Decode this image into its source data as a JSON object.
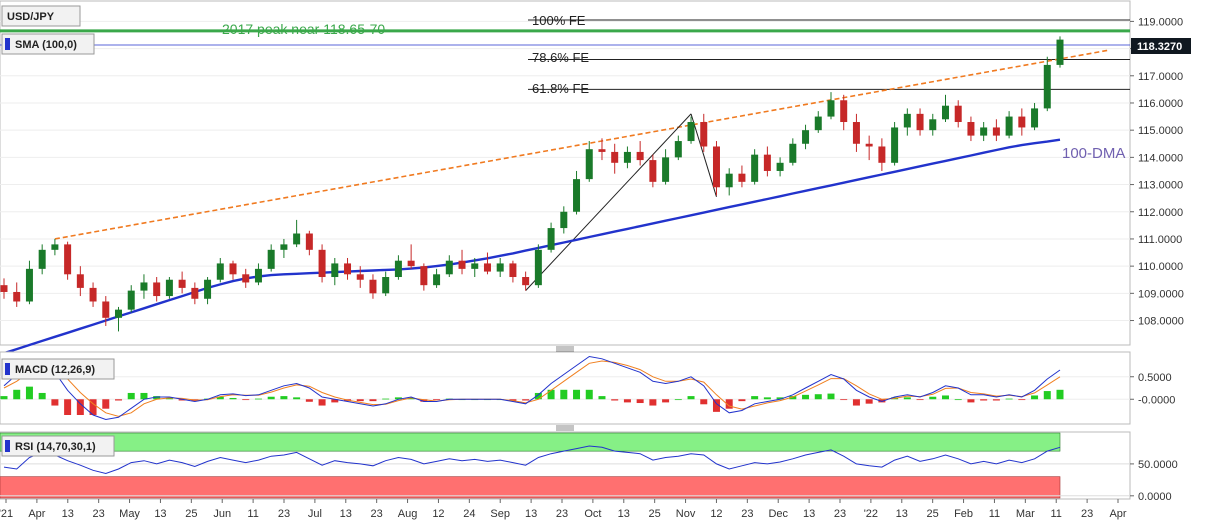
{
  "chart_data": {
    "type": "line",
    "price_panel": {
      "symbol": "USD/JPY",
      "indicator": "SMA (100,0)",
      "last_price": "118.3270",
      "y_ticks": [
        "119.0000",
        "118.0000",
        "117.0000",
        "116.0000",
        "115.0000",
        "114.0000",
        "113.0000",
        "112.0000",
        "111.0000",
        "110.0000",
        "109.0000",
        "108.0000"
      ],
      "ylim": [
        107.1,
        119.75
      ],
      "candles": [
        {
          "o": 109.3,
          "h": 109.55,
          "l": 108.8,
          "c": 109.05
        },
        {
          "o": 109.05,
          "h": 109.4,
          "l": 108.5,
          "c": 108.7
        },
        {
          "o": 108.7,
          "h": 110.2,
          "l": 108.6,
          "c": 109.9
        },
        {
          "o": 109.9,
          "h": 110.8,
          "l": 109.7,
          "c": 110.6
        },
        {
          "o": 110.6,
          "h": 111.0,
          "l": 110.4,
          "c": 110.8
        },
        {
          "o": 110.8,
          "h": 110.9,
          "l": 109.5,
          "c": 109.7
        },
        {
          "o": 109.7,
          "h": 110.0,
          "l": 108.9,
          "c": 109.2
        },
        {
          "o": 109.2,
          "h": 109.4,
          "l": 108.5,
          "c": 108.7
        },
        {
          "o": 108.7,
          "h": 108.9,
          "l": 107.8,
          "c": 108.1
        },
        {
          "o": 108.1,
          "h": 108.5,
          "l": 107.6,
          "c": 108.4
        },
        {
          "o": 108.4,
          "h": 109.3,
          "l": 108.3,
          "c": 109.1
        },
        {
          "o": 109.1,
          "h": 109.7,
          "l": 108.8,
          "c": 109.4
        },
        {
          "o": 109.4,
          "h": 109.6,
          "l": 108.7,
          "c": 108.9
        },
        {
          "o": 108.9,
          "h": 109.6,
          "l": 108.8,
          "c": 109.5
        },
        {
          "o": 109.5,
          "h": 109.8,
          "l": 109.0,
          "c": 109.2
        },
        {
          "o": 109.2,
          "h": 109.4,
          "l": 108.6,
          "c": 108.8
        },
        {
          "o": 108.8,
          "h": 109.6,
          "l": 108.6,
          "c": 109.5
        },
        {
          "o": 109.5,
          "h": 110.3,
          "l": 109.4,
          "c": 110.1
        },
        {
          "o": 110.1,
          "h": 110.2,
          "l": 109.5,
          "c": 109.7
        },
        {
          "o": 109.7,
          "h": 109.9,
          "l": 109.2,
          "c": 109.4
        },
        {
          "o": 109.4,
          "h": 110.1,
          "l": 109.3,
          "c": 109.9
        },
        {
          "o": 109.9,
          "h": 110.8,
          "l": 109.8,
          "c": 110.6
        },
        {
          "o": 110.6,
          "h": 111.0,
          "l": 110.3,
          "c": 110.8
        },
        {
          "o": 110.8,
          "h": 111.7,
          "l": 110.7,
          "c": 111.2
        },
        {
          "o": 111.2,
          "h": 111.3,
          "l": 110.4,
          "c": 110.6
        },
        {
          "o": 110.6,
          "h": 110.8,
          "l": 109.4,
          "c": 109.6
        },
        {
          "o": 109.6,
          "h": 110.3,
          "l": 109.3,
          "c": 110.1
        },
        {
          "o": 110.1,
          "h": 110.3,
          "l": 109.5,
          "c": 109.7
        },
        {
          "o": 109.7,
          "h": 110.0,
          "l": 109.2,
          "c": 109.5
        },
        {
          "o": 109.5,
          "h": 109.7,
          "l": 108.8,
          "c": 109.0
        },
        {
          "o": 109.0,
          "h": 109.8,
          "l": 108.9,
          "c": 109.6
        },
        {
          "o": 109.6,
          "h": 110.4,
          "l": 109.5,
          "c": 110.2
        },
        {
          "o": 110.2,
          "h": 110.8,
          "l": 109.9,
          "c": 110.0
        },
        {
          "o": 110.0,
          "h": 110.1,
          "l": 109.1,
          "c": 109.3
        },
        {
          "o": 109.3,
          "h": 109.9,
          "l": 109.2,
          "c": 109.7
        },
        {
          "o": 109.7,
          "h": 110.4,
          "l": 109.6,
          "c": 110.2
        },
        {
          "o": 110.2,
          "h": 110.6,
          "l": 109.7,
          "c": 109.9
        },
        {
          "o": 109.9,
          "h": 110.3,
          "l": 109.6,
          "c": 110.1
        },
        {
          "o": 110.1,
          "h": 110.5,
          "l": 109.7,
          "c": 109.8
        },
        {
          "o": 109.8,
          "h": 110.3,
          "l": 109.6,
          "c": 110.1
        },
        {
          "o": 110.1,
          "h": 110.2,
          "l": 109.4,
          "c": 109.6
        },
        {
          "o": 109.6,
          "h": 109.8,
          "l": 109.1,
          "c": 109.3
        },
        {
          "o": 109.3,
          "h": 110.8,
          "l": 109.2,
          "c": 110.6
        },
        {
          "o": 110.6,
          "h": 111.6,
          "l": 110.5,
          "c": 111.4
        },
        {
          "o": 111.4,
          "h": 112.2,
          "l": 111.2,
          "c": 112.0
        },
        {
          "o": 112.0,
          "h": 113.5,
          "l": 111.9,
          "c": 113.2
        },
        {
          "o": 113.2,
          "h": 114.6,
          "l": 113.1,
          "c": 114.3
        },
        {
          "o": 114.3,
          "h": 114.7,
          "l": 113.9,
          "c": 114.2
        },
        {
          "o": 114.2,
          "h": 114.5,
          "l": 113.4,
          "c": 113.8
        },
        {
          "o": 113.8,
          "h": 114.4,
          "l": 113.6,
          "c": 114.2
        },
        {
          "o": 114.2,
          "h": 114.6,
          "l": 113.7,
          "c": 113.9
        },
        {
          "o": 113.9,
          "h": 114.1,
          "l": 112.9,
          "c": 113.1
        },
        {
          "o": 113.1,
          "h": 114.3,
          "l": 113.0,
          "c": 114.0
        },
        {
          "o": 114.0,
          "h": 114.8,
          "l": 113.9,
          "c": 114.6
        },
        {
          "o": 114.6,
          "h": 115.5,
          "l": 114.5,
          "c": 115.3
        },
        {
          "o": 115.3,
          "h": 115.6,
          "l": 114.2,
          "c": 114.4
        },
        {
          "o": 114.4,
          "h": 114.6,
          "l": 112.6,
          "c": 112.9
        },
        {
          "o": 112.9,
          "h": 113.6,
          "l": 112.6,
          "c": 113.4
        },
        {
          "o": 113.4,
          "h": 113.7,
          "l": 112.9,
          "c": 113.1
        },
        {
          "o": 113.1,
          "h": 114.3,
          "l": 113.0,
          "c": 114.1
        },
        {
          "o": 114.1,
          "h": 114.4,
          "l": 113.3,
          "c": 113.5
        },
        {
          "o": 113.5,
          "h": 114.0,
          "l": 113.3,
          "c": 113.8
        },
        {
          "o": 113.8,
          "h": 114.7,
          "l": 113.7,
          "c": 114.5
        },
        {
          "o": 114.5,
          "h": 115.2,
          "l": 114.3,
          "c": 115.0
        },
        {
          "o": 115.0,
          "h": 115.7,
          "l": 114.9,
          "c": 115.5
        },
        {
          "o": 115.5,
          "h": 116.4,
          "l": 115.4,
          "c": 116.1
        },
        {
          "o": 116.1,
          "h": 116.3,
          "l": 115.0,
          "c": 115.3
        },
        {
          "o": 115.3,
          "h": 115.6,
          "l": 114.2,
          "c": 114.5
        },
        {
          "o": 114.5,
          "h": 114.8,
          "l": 113.9,
          "c": 114.4
        },
        {
          "o": 114.4,
          "h": 114.7,
          "l": 113.5,
          "c": 113.8
        },
        {
          "o": 113.8,
          "h": 115.3,
          "l": 113.7,
          "c": 115.1
        },
        {
          "o": 115.1,
          "h": 115.8,
          "l": 114.8,
          "c": 115.6
        },
        {
          "o": 115.6,
          "h": 115.8,
          "l": 114.8,
          "c": 115.0
        },
        {
          "o": 115.0,
          "h": 115.6,
          "l": 114.8,
          "c": 115.4
        },
        {
          "o": 115.4,
          "h": 116.3,
          "l": 115.3,
          "c": 115.9
        },
        {
          "o": 115.9,
          "h": 116.1,
          "l": 115.1,
          "c": 115.3
        },
        {
          "o": 115.3,
          "h": 115.5,
          "l": 114.6,
          "c": 114.8
        },
        {
          "o": 114.8,
          "h": 115.3,
          "l": 114.6,
          "c": 115.1
        },
        {
          "o": 115.1,
          "h": 115.4,
          "l": 114.6,
          "c": 114.8
        },
        {
          "o": 114.8,
          "h": 115.7,
          "l": 114.7,
          "c": 115.5
        },
        {
          "o": 115.5,
          "h": 115.8,
          "l": 114.8,
          "c": 115.1
        },
        {
          "o": 115.1,
          "h": 116.0,
          "l": 115.0,
          "c": 115.8
        },
        {
          "o": 115.8,
          "h": 117.7,
          "l": 115.7,
          "c": 117.4
        },
        {
          "o": 117.4,
          "h": 118.45,
          "l": 117.3,
          "c": 118.33
        }
      ],
      "sma100": [
        106.8,
        106.95,
        107.1,
        107.25,
        107.4,
        107.55,
        107.7,
        107.85,
        108.0,
        108.15,
        108.3,
        108.45,
        108.6,
        108.75,
        108.9,
        109.05,
        109.2,
        109.33,
        109.45,
        109.55,
        109.62,
        109.67,
        109.7,
        109.72,
        109.74,
        109.76,
        109.78,
        109.8,
        109.82,
        109.84,
        109.86,
        109.88,
        109.91,
        109.95,
        110.0,
        110.06,
        110.13,
        110.21,
        110.29,
        110.38,
        110.47,
        110.57,
        110.67,
        110.77,
        110.87,
        110.97,
        111.07,
        111.17,
        111.27,
        111.37,
        111.47,
        111.57,
        111.67,
        111.77,
        111.87,
        111.97,
        112.07,
        112.17,
        112.27,
        112.37,
        112.47,
        112.57,
        112.67,
        112.77,
        112.87,
        112.97,
        113.07,
        113.17,
        113.27,
        113.37,
        113.47,
        113.57,
        113.67,
        113.77,
        113.87,
        113.97,
        114.07,
        114.17,
        114.27,
        114.37,
        114.45,
        114.52,
        114.58,
        114.65
      ],
      "annotations": {
        "fe100": {
          "label": "100% FE",
          "level": 119.05
        },
        "fe786": {
          "label": "78.6% FE",
          "level": 117.6
        },
        "fe618": {
          "label": "61.8% FE",
          "level": 116.5
        },
        "peak2017": {
          "label": "2017 peak near 118.65-70",
          "level": 118.65
        },
        "dma": {
          "label": "100-DMA"
        }
      }
    },
    "macd_panel": {
      "label": "MACD (12,26,9)",
      "y_ticks": [
        "0.5000",
        "-0.0000"
      ],
      "ylim": [
        -0.55,
        1.05
      ],
      "macd": [
        0.3,
        0.55,
        0.8,
        0.85,
        0.6,
        0.2,
        -0.1,
        -0.35,
        -0.45,
        -0.4,
        -0.2,
        0.0,
        0.05,
        0.05,
        0.0,
        -0.05,
        0.0,
        0.1,
        0.12,
        0.08,
        0.1,
        0.2,
        0.3,
        0.35,
        0.25,
        0.05,
        0.0,
        -0.05,
        -0.1,
        -0.15,
        -0.1,
        0.0,
        0.05,
        -0.05,
        -0.05,
        0.0,
        0.0,
        0.0,
        0.0,
        0.0,
        -0.05,
        -0.1,
        0.1,
        0.35,
        0.55,
        0.75,
        0.95,
        0.9,
        0.8,
        0.7,
        0.6,
        0.4,
        0.35,
        0.4,
        0.5,
        0.3,
        -0.1,
        -0.3,
        -0.25,
        -0.1,
        -0.05,
        0.0,
        0.1,
        0.25,
        0.4,
        0.55,
        0.45,
        0.2,
        0.05,
        -0.05,
        0.05,
        0.1,
        0.05,
        0.15,
        0.3,
        0.25,
        0.1,
        0.1,
        0.05,
        0.1,
        0.05,
        0.2,
        0.45,
        0.65
      ],
      "signal": [
        0.25,
        0.4,
        0.6,
        0.75,
        0.7,
        0.45,
        0.15,
        -0.1,
        -0.3,
        -0.38,
        -0.3,
        -0.1,
        0.0,
        0.03,
        0.02,
        -0.02,
        -0.01,
        0.06,
        0.1,
        0.09,
        0.09,
        0.16,
        0.25,
        0.32,
        0.29,
        0.15,
        0.05,
        -0.02,
        -0.07,
        -0.12,
        -0.11,
        -0.03,
        0.03,
        -0.01,
        -0.04,
        -0.01,
        0.0,
        0.0,
        0.0,
        0.0,
        -0.03,
        -0.08,
        0.0,
        0.2,
        0.4,
        0.6,
        0.8,
        0.85,
        0.82,
        0.75,
        0.66,
        0.5,
        0.4,
        0.4,
        0.45,
        0.38,
        0.1,
        -0.15,
        -0.22,
        -0.15,
        -0.08,
        -0.03,
        0.05,
        0.18,
        0.32,
        0.46,
        0.46,
        0.3,
        0.12,
        0.0,
        0.02,
        0.07,
        0.06,
        0.11,
        0.24,
        0.25,
        0.15,
        0.12,
        0.07,
        0.09,
        0.06,
        0.14,
        0.32,
        0.5
      ]
    },
    "rsi_panel": {
      "label": "RSI (14,70,30,1)",
      "y_ticks": [
        "50.0000",
        "0.0000"
      ],
      "ylim": [
        -5,
        100
      ],
      "upper": 70,
      "lower": 30,
      "values": [
        45,
        42,
        60,
        68,
        64,
        55,
        48,
        40,
        35,
        42,
        52,
        55,
        50,
        56,
        52,
        46,
        54,
        60,
        56,
        52,
        56,
        62,
        64,
        68,
        58,
        48,
        55,
        52,
        50,
        47,
        55,
        60,
        57,
        50,
        54,
        58,
        55,
        57,
        54,
        56,
        52,
        48,
        60,
        66,
        70,
        74,
        78,
        76,
        70,
        68,
        66,
        56,
        60,
        62,
        66,
        64,
        50,
        42,
        47,
        52,
        50,
        53,
        58,
        64,
        68,
        72,
        62,
        50,
        47,
        45,
        56,
        62,
        54,
        58,
        64,
        58,
        50,
        54,
        50,
        56,
        52,
        58,
        70,
        76
      ]
    },
    "x_ticks": [
      "'21",
      "Apr",
      "13",
      "23",
      "May",
      "13",
      "25",
      "Jun",
      "11",
      "23",
      "Jul",
      "13",
      "23",
      "Aug",
      "12",
      "24",
      "Sep",
      "13",
      "23",
      "Oct",
      "13",
      "25",
      "Nov",
      "12",
      "23",
      "Dec",
      "13",
      "23",
      "'22",
      "13",
      "25",
      "Feb",
      "11",
      "Mar",
      "11",
      "23",
      "Apr"
    ]
  }
}
